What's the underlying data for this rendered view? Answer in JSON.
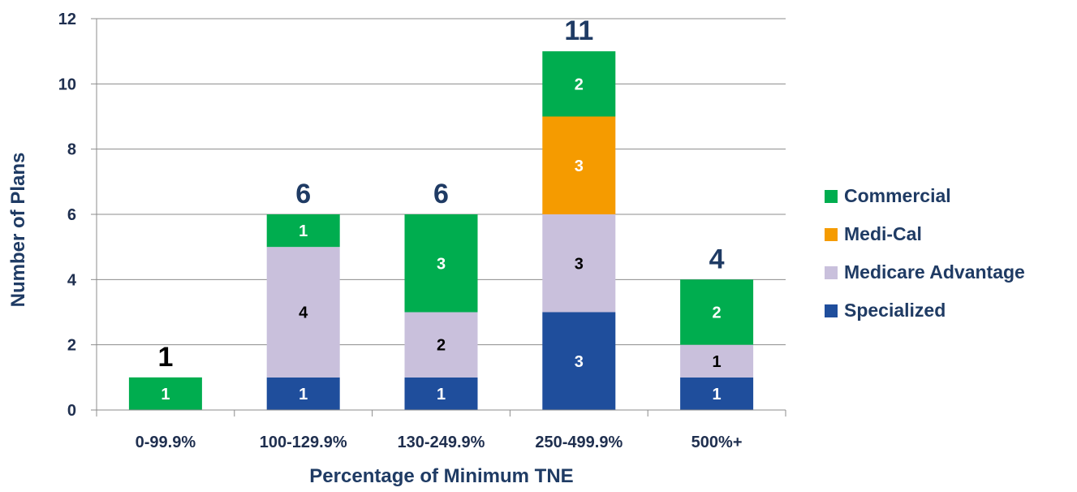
{
  "chart_data": {
    "type": "bar",
    "stacked": true,
    "title": "",
    "xlabel": "Percentage of Minimum TNE",
    "ylabel": "Number of Plans",
    "ylim": [
      0,
      12
    ],
    "yticks": [
      "0",
      "2",
      "4",
      "6",
      "8",
      "10",
      "12"
    ],
    "grid": true,
    "legend_position": "right",
    "categories": [
      "0-99.9%",
      "100-129.9%",
      "130-249.9%",
      "250-499.9%",
      "500%+"
    ],
    "series": [
      {
        "name": "Specialized",
        "color": "#1f4e9c",
        "label_color": "#ffffff",
        "values": [
          0,
          1,
          1,
          3,
          1
        ]
      },
      {
        "name": "Medicare Advantage",
        "color": "#c9c0dc",
        "label_color": "#000000",
        "values": [
          0,
          4,
          2,
          3,
          1
        ]
      },
      {
        "name": "Medi-Cal",
        "color": "#f59b00",
        "label_color": "#ffffff",
        "values": [
          0,
          0,
          0,
          3,
          0
        ]
      },
      {
        "name": "Commercial",
        "color": "#00ad4f",
        "label_color": "#ffffff",
        "values": [
          1,
          1,
          3,
          2,
          2
        ]
      }
    ],
    "totals": [
      "1",
      "6",
      "6",
      "11",
      "4"
    ],
    "total_colors": [
      "#000000",
      "#1f3b64",
      "#1f3b64",
      "#1f3b64",
      "#1f3b64"
    ],
    "legend": [
      "Commercial",
      "Medi-Cal",
      "Medicare Advantage",
      "Specialized"
    ]
  }
}
